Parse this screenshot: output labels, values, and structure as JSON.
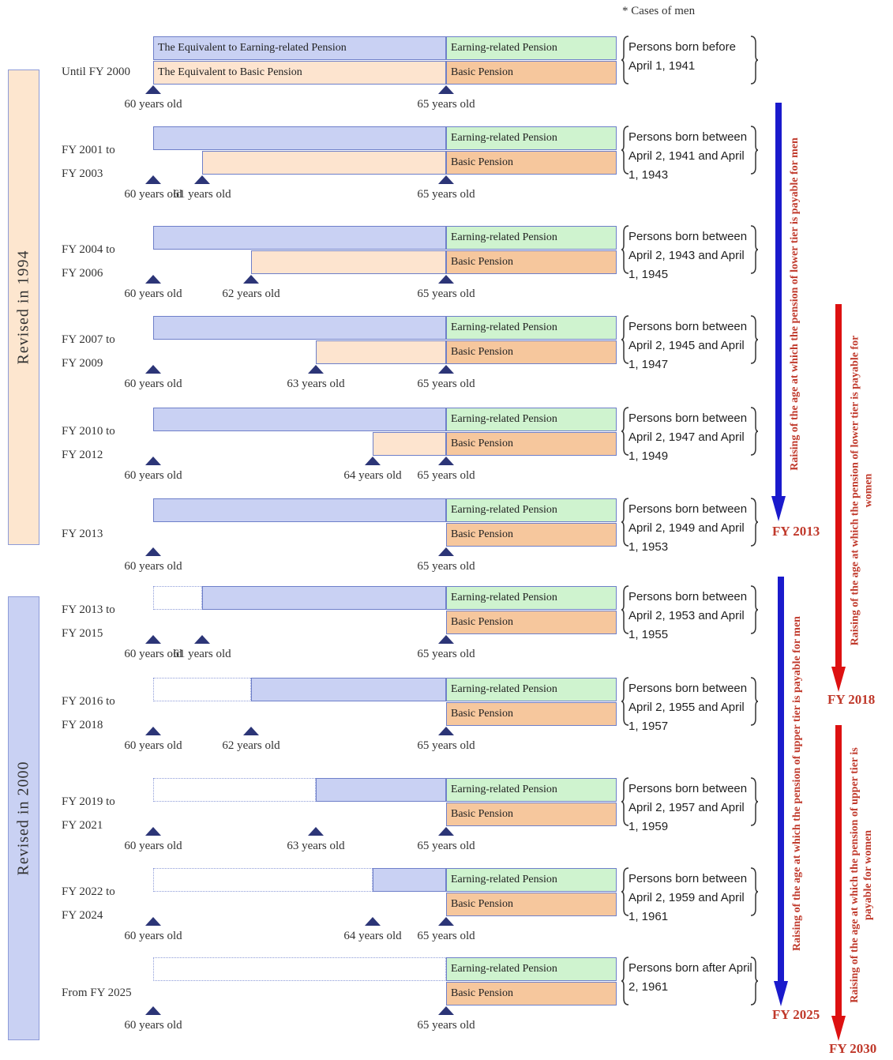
{
  "note": "* Cases of men",
  "revisions": [
    {
      "label": "Revised in 1994"
    },
    {
      "label": "Revised in 2000"
    }
  ],
  "labels": {
    "equiv_earning": "The Equivalent to Earning-related Pension",
    "equiv_basic": "The Equivalent to Basic Pension",
    "earning": "Earning-related Pension",
    "basic": "Basic Pension"
  },
  "rows": [
    {
      "label": [
        "Until FY 2000"
      ],
      "persons": "Persons born before April 1, 1941",
      "ages": [
        "60 years old",
        "65 years old"
      ]
    },
    {
      "label": [
        "FY 2001 to",
        "FY 2003"
      ],
      "persons": "Persons born between April 2, 1941 and April 1, 1943",
      "ages": [
        "60 years old",
        "61 years old",
        "65 years old"
      ]
    },
    {
      "label": [
        "FY 2004 to",
        "FY 2006"
      ],
      "persons": "Persons born between April 2, 1943 and April 1, 1945",
      "ages": [
        "60 years old",
        "62 years old",
        "65 years old"
      ]
    },
    {
      "label": [
        "FY 2007 to",
        "FY 2009"
      ],
      "persons": "Persons born between April 2, 1945 and April 1, 1947",
      "ages": [
        "60 years old",
        "63 years old",
        "65 years old"
      ]
    },
    {
      "label": [
        "FY 2010 to",
        "FY 2012"
      ],
      "persons": "Persons born between April 2, 1947 and April 1, 1949",
      "ages": [
        "60 years old",
        "64 years old",
        "65 years old"
      ]
    },
    {
      "label": [
        "FY 2013"
      ],
      "persons": "Persons born between April 2, 1949 and April 1, 1953",
      "ages": [
        "60 years old",
        "65 years old"
      ]
    },
    {
      "label": [
        "FY 2013 to",
        "FY 2015"
      ],
      "persons": "Persons born between April 2, 1953 and April 1, 1955",
      "ages": [
        "60 years old",
        "61 years old",
        "65 years old"
      ]
    },
    {
      "label": [
        "FY 2016 to",
        "FY 2018"
      ],
      "persons": "Persons born between April 2, 1955 and April 1, 1957",
      "ages": [
        "60 years old",
        "62 years old",
        "65 years old"
      ]
    },
    {
      "label": [
        "FY 2019 to",
        "FY 2021"
      ],
      "persons": "Persons born between April 2, 1957 and April 1, 1959",
      "ages": [
        "60 years old",
        "63 years old",
        "65 years old"
      ]
    },
    {
      "label": [
        "FY 2022 to",
        "FY 2024"
      ],
      "persons": "Persons born between April 2, 1959 and April 1, 1961",
      "ages": [
        "60 years old",
        "64 years old",
        "65 years old"
      ]
    },
    {
      "label": [
        "From FY 2025"
      ],
      "persons": "Persons born after April 2, 1961",
      "ages": [
        "60 years old",
        "65 years old"
      ]
    }
  ],
  "arrows": [
    {
      "text": "Raising of the age at which the pension of lower tier is payable for men",
      "end": "FY 2013",
      "color": "#1a1acc"
    },
    {
      "text": "Raising of the age at which the pension of lower tier is payable for women",
      "end": "FY 2018",
      "color": "#dd1111"
    },
    {
      "text": "Raising of the age at which the pension of upper tier is payable for men",
      "end": "FY 2025",
      "color": "#1a1acc"
    },
    {
      "text": "Raising of the age at which the pension of upper tier is payable for women",
      "end": "FY 2030",
      "color": "#dd1111"
    }
  ]
}
